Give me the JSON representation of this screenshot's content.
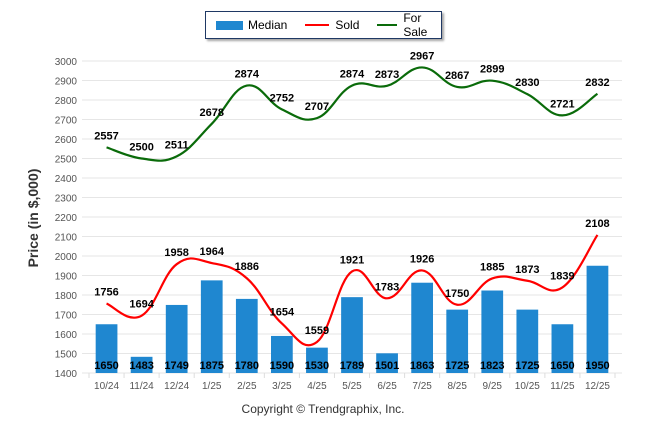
{
  "chart_data": {
    "type": "bar",
    "title": "",
    "xlabel": "",
    "ylabel": "Price (in $,000)",
    "ylim": [
      1400,
      3000
    ],
    "yticks": [
      1400,
      1500,
      1600,
      1700,
      1800,
      1900,
      2000,
      2100,
      2200,
      2300,
      2400,
      2500,
      2600,
      2700,
      2800,
      2900,
      3000
    ],
    "grid": true,
    "legend_position": "top-center",
    "categories": [
      "10/24",
      "11/24",
      "12/24",
      "1/25",
      "2/25",
      "3/25",
      "4/25",
      "5/25",
      "6/25",
      "7/25",
      "8/25",
      "9/25",
      "10/25",
      "11/25",
      "12/25"
    ],
    "series": [
      {
        "name": "Median",
        "type": "bar",
        "color": "#1f87d0",
        "values": [
          1650,
          1483,
          1749,
          1875,
          1780,
          1590,
          1530,
          1789,
          1501,
          1863,
          1725,
          1823,
          1725,
          1650,
          1950
        ]
      },
      {
        "name": "Sold",
        "type": "line",
        "color": "#ff0000",
        "values": [
          1756,
          1694,
          1958,
          1964,
          1886,
          1654,
          1559,
          1921,
          1783,
          1926,
          1750,
          1885,
          1873,
          1839,
          2108
        ]
      },
      {
        "name": "For Sale",
        "type": "line",
        "color": "#0a6b0a",
        "values": [
          2557,
          2500,
          2511,
          2678,
          2874,
          2752,
          2707,
          2874,
          2873,
          2967,
          2867,
          2899,
          2830,
          2721,
          2832
        ]
      }
    ],
    "copyright": "Copyright © Trendgraphix, Inc."
  }
}
